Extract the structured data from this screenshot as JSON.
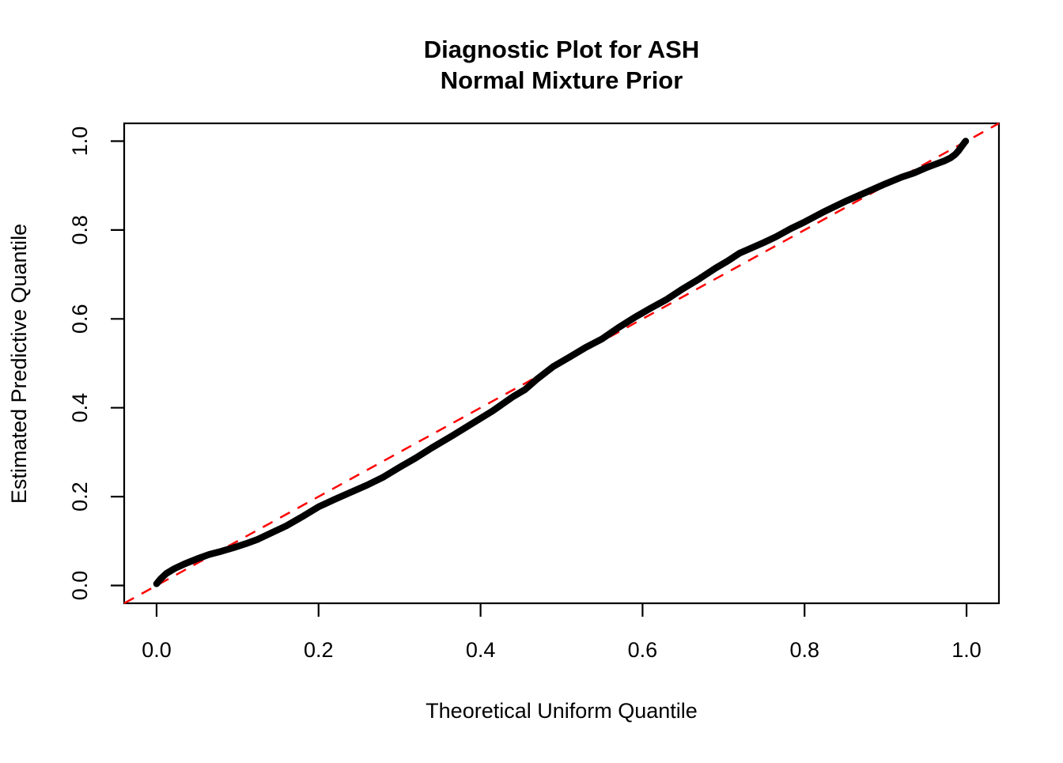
{
  "title": {
    "line1": "Diagnostic Plot for ASH",
    "line2": "Normal Mixture Prior"
  },
  "axes": {
    "x": {
      "label": "Theoretical Uniform Quantile",
      "tick_values": [
        0.0,
        0.2,
        0.4,
        0.6,
        0.8,
        1.0
      ],
      "tick_labels": [
        "0.0",
        "0.2",
        "0.4",
        "0.6",
        "0.8",
        "1.0"
      ],
      "range": [
        -0.04,
        1.04
      ]
    },
    "y": {
      "label": "Estimated Predictive Quantile",
      "tick_values": [
        0.0,
        0.2,
        0.4,
        0.6,
        0.8,
        1.0
      ],
      "tick_labels": [
        "0.0",
        "0.2",
        "0.4",
        "0.6",
        "0.8",
        "1.0"
      ],
      "range": [
        -0.04,
        1.04
      ]
    }
  },
  "colors": {
    "background": "#ffffff",
    "axis": "#000000",
    "curve": "#000000",
    "reference_line": "#ff0000"
  },
  "chart_data": {
    "type": "line",
    "title": "Diagnostic Plot for ASH Normal Mixture Prior",
    "xlabel": "Theoretical Uniform Quantile",
    "ylabel": "Estimated Predictive Quantile",
    "xlim": [
      -0.04,
      1.04
    ],
    "ylim": [
      -0.04,
      1.04
    ],
    "grid": false,
    "legend": "none",
    "series": [
      {
        "name": "estimated-predictive-quantile-curve",
        "color": "#000000",
        "style": "solid-thick",
        "points": [
          [
            0.0,
            0.004
          ],
          [
            0.005,
            0.015
          ],
          [
            0.012,
            0.027
          ],
          [
            0.022,
            0.038
          ],
          [
            0.035,
            0.049
          ],
          [
            0.05,
            0.06
          ],
          [
            0.065,
            0.07
          ],
          [
            0.08,
            0.077
          ],
          [
            0.095,
            0.085
          ],
          [
            0.11,
            0.094
          ],
          [
            0.125,
            0.104
          ],
          [
            0.14,
            0.117
          ],
          [
            0.16,
            0.134
          ],
          [
            0.18,
            0.155
          ],
          [
            0.2,
            0.177
          ],
          [
            0.22,
            0.194
          ],
          [
            0.24,
            0.21
          ],
          [
            0.26,
            0.226
          ],
          [
            0.28,
            0.244
          ],
          [
            0.3,
            0.266
          ],
          [
            0.32,
            0.287
          ],
          [
            0.34,
            0.31
          ],
          [
            0.365,
            0.337
          ],
          [
            0.39,
            0.365
          ],
          [
            0.415,
            0.393
          ],
          [
            0.44,
            0.425
          ],
          [
            0.455,
            0.441
          ],
          [
            0.47,
            0.465
          ],
          [
            0.49,
            0.493
          ],
          [
            0.51,
            0.514
          ],
          [
            0.53,
            0.536
          ],
          [
            0.55,
            0.555
          ],
          [
            0.57,
            0.58
          ],
          [
            0.59,
            0.603
          ],
          [
            0.61,
            0.624
          ],
          [
            0.63,
            0.644
          ],
          [
            0.65,
            0.668
          ],
          [
            0.67,
            0.69
          ],
          [
            0.69,
            0.714
          ],
          [
            0.705,
            0.73
          ],
          [
            0.72,
            0.748
          ],
          [
            0.735,
            0.76
          ],
          [
            0.75,
            0.772
          ],
          [
            0.765,
            0.785
          ],
          [
            0.783,
            0.803
          ],
          [
            0.8,
            0.818
          ],
          [
            0.825,
            0.842
          ],
          [
            0.85,
            0.864
          ],
          [
            0.875,
            0.884
          ],
          [
            0.9,
            0.904
          ],
          [
            0.92,
            0.919
          ],
          [
            0.935,
            0.928
          ],
          [
            0.95,
            0.94
          ],
          [
            0.96,
            0.947
          ],
          [
            0.972,
            0.955
          ],
          [
            0.98,
            0.962
          ],
          [
            0.986,
            0.97
          ],
          [
            0.99,
            0.978
          ],
          [
            0.993,
            0.986
          ],
          [
            0.996,
            0.993
          ],
          [
            0.998,
            0.998
          ],
          [
            0.999,
            1.0
          ]
        ]
      },
      {
        "name": "reference-diagonal-y-equals-x",
        "color": "#ff0000",
        "style": "dashed",
        "points": [
          [
            -0.04,
            -0.04
          ],
          [
            1.04,
            1.04
          ]
        ]
      }
    ]
  }
}
